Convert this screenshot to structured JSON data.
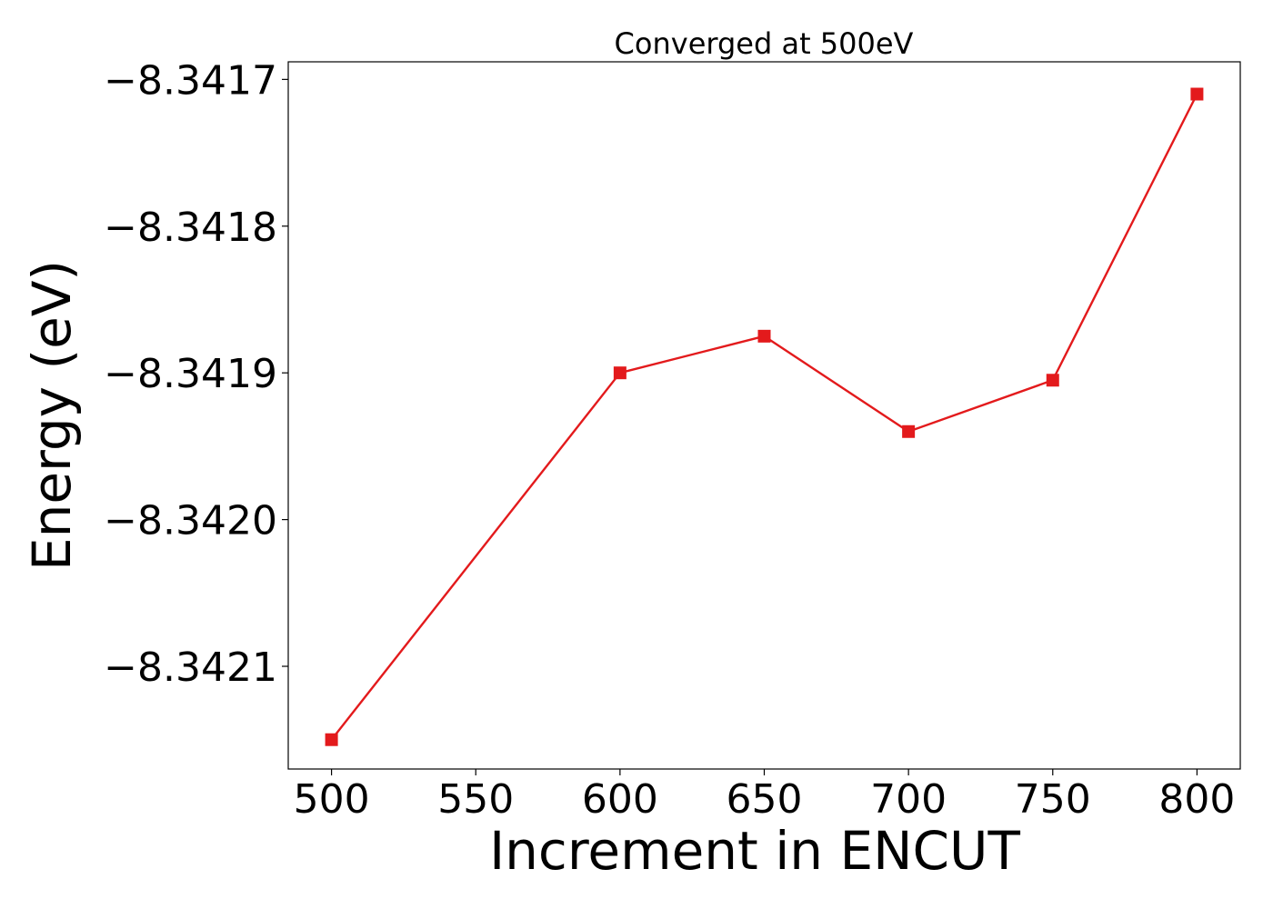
{
  "chart_data": {
    "type": "line",
    "title": "Converged at 500eV",
    "xlabel": "Increment in ENCUT",
    "ylabel": "Energy (eV)",
    "x": [
      500,
      600,
      650,
      700,
      750,
      800
    ],
    "series": [
      {
        "values": [
          -8.34215,
          -8.3419,
          -8.341875,
          -8.34194,
          -8.341905,
          -8.34171
        ],
        "color": "#e31a1c",
        "marker": "square"
      }
    ],
    "xlim": [
      485,
      815
    ],
    "ylim": [
      -8.34217,
      -8.341688
    ],
    "xticks": [
      500,
      550,
      600,
      650,
      700,
      750,
      800
    ],
    "xtick_labels": [
      "500",
      "550",
      "600",
      "650",
      "700",
      "750",
      "800"
    ],
    "yticks": [
      -8.3417,
      -8.3418,
      -8.3419,
      -8.342,
      -8.3421
    ],
    "ytick_labels": [
      "−8.3417",
      "−8.3418",
      "−8.3419",
      "−8.3420",
      "−8.3421"
    ],
    "grid": false,
    "legend": false
  }
}
